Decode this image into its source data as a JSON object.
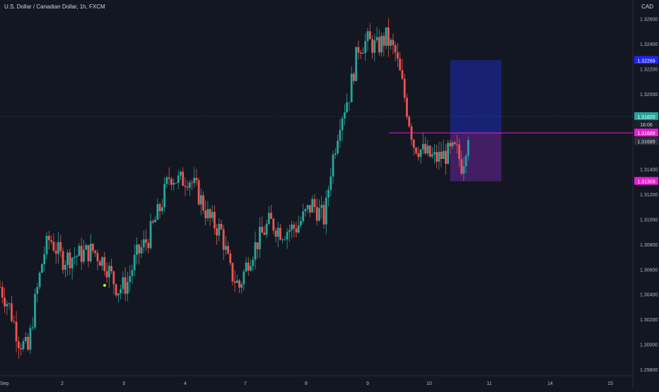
{
  "chart_data": {
    "type": "candlestick",
    "title": "U.S. Dollar / Canadian Dollar, 1h, FXCM",
    "currency": "CAD",
    "ylim": [
      1.2975,
      1.3275
    ],
    "xlim": [
      0.98,
      15.3
    ],
    "y_ticks": [
      "1.32600",
      "1.32400",
      "1.32200",
      "1.32000",
      "1.31800",
      "1.31400",
      "1.31200",
      "1.31000",
      "1.30800",
      "1.30600",
      "1.30400",
      "1.30200",
      "1.30000",
      "1.29800"
    ],
    "x_ticks": [
      {
        "label": "Sep",
        "x": 1.0
      },
      {
        "label": "2",
        "x": 2
      },
      {
        "label": "3",
        "x": 3
      },
      {
        "label": "4",
        "x": 4
      },
      {
        "label": "7",
        "x": 5
      },
      {
        "label": "8",
        "x": 6
      },
      {
        "label": "9",
        "x": 7
      },
      {
        "label": "10",
        "x": 8
      },
      {
        "label": "11",
        "x": 9
      },
      {
        "label": "14",
        "x": 10
      },
      {
        "label": "15",
        "x": 11
      }
    ],
    "anchors": [
      [
        1.0,
        1.3046
      ],
      [
        1.15,
        1.303
      ],
      [
        1.3,
        1.3004
      ],
      [
        1.45,
        1.2995
      ],
      [
        1.55,
        1.303
      ],
      [
        1.7,
        1.3072
      ],
      [
        1.8,
        1.3085
      ],
      [
        2.0,
        1.3068
      ],
      [
        2.3,
        1.3072
      ],
      [
        2.5,
        1.3075
      ],
      [
        2.7,
        1.3065
      ],
      [
        2.9,
        1.3044
      ],
      [
        3.05,
        1.3048
      ],
      [
        3.2,
        1.307
      ],
      [
        3.4,
        1.3085
      ],
      [
        3.6,
        1.311
      ],
      [
        3.75,
        1.3136
      ],
      [
        3.9,
        1.313
      ],
      [
        4.05,
        1.3134
      ],
      [
        4.2,
        1.3122
      ],
      [
        4.4,
        1.31
      ],
      [
        4.6,
        1.309
      ],
      [
        4.75,
        1.3058
      ],
      [
        4.9,
        1.3046
      ],
      [
        5.05,
        1.3068
      ],
      [
        5.2,
        1.3082
      ],
      [
        5.4,
        1.3098
      ],
      [
        5.6,
        1.309
      ],
      [
        5.85,
        1.3094
      ],
      [
        6.1,
        1.3112
      ],
      [
        6.3,
        1.31
      ],
      [
        6.4,
        1.314
      ],
      [
        6.55,
        1.318
      ],
      [
        6.7,
        1.32
      ],
      [
        6.85,
        1.3238
      ],
      [
        7.0,
        1.3242
      ],
      [
        7.15,
        1.3237
      ],
      [
        7.3,
        1.3245
      ],
      [
        7.45,
        1.3232
      ],
      [
        7.55,
        1.321
      ],
      [
        7.65,
        1.3185
      ],
      [
        7.75,
        1.316
      ],
      [
        7.95,
        1.3152
      ],
      [
        8.1,
        1.3148
      ],
      [
        8.3,
        1.3152
      ],
      [
        8.45,
        1.3155
      ],
      [
        8.55,
        1.3142
      ],
      [
        8.65,
        1.317
      ]
    ],
    "last_price": "1.31820",
    "countdown": "16:06",
    "labels": {
      "target": "1.32269",
      "entry_top": "1.31689",
      "entry": "1.31689",
      "stop": "1.31303"
    },
    "position": {
      "type": "long",
      "entry": 1.31689,
      "target": 1.32269,
      "stop": 1.31303,
      "x_start": 8.35,
      "x_end": 9.2
    },
    "entry_line_x_start": 7.35,
    "colors": {
      "up": "#26a69a",
      "down": "#ef5350",
      "target_zone": "#1a237e",
      "stop_zone": "#4a1f6b",
      "target_label": "#1d24f5",
      "entry_line": "#e91ed4",
      "last_price": "#26a69a",
      "marker": "#b9f542"
    }
  }
}
